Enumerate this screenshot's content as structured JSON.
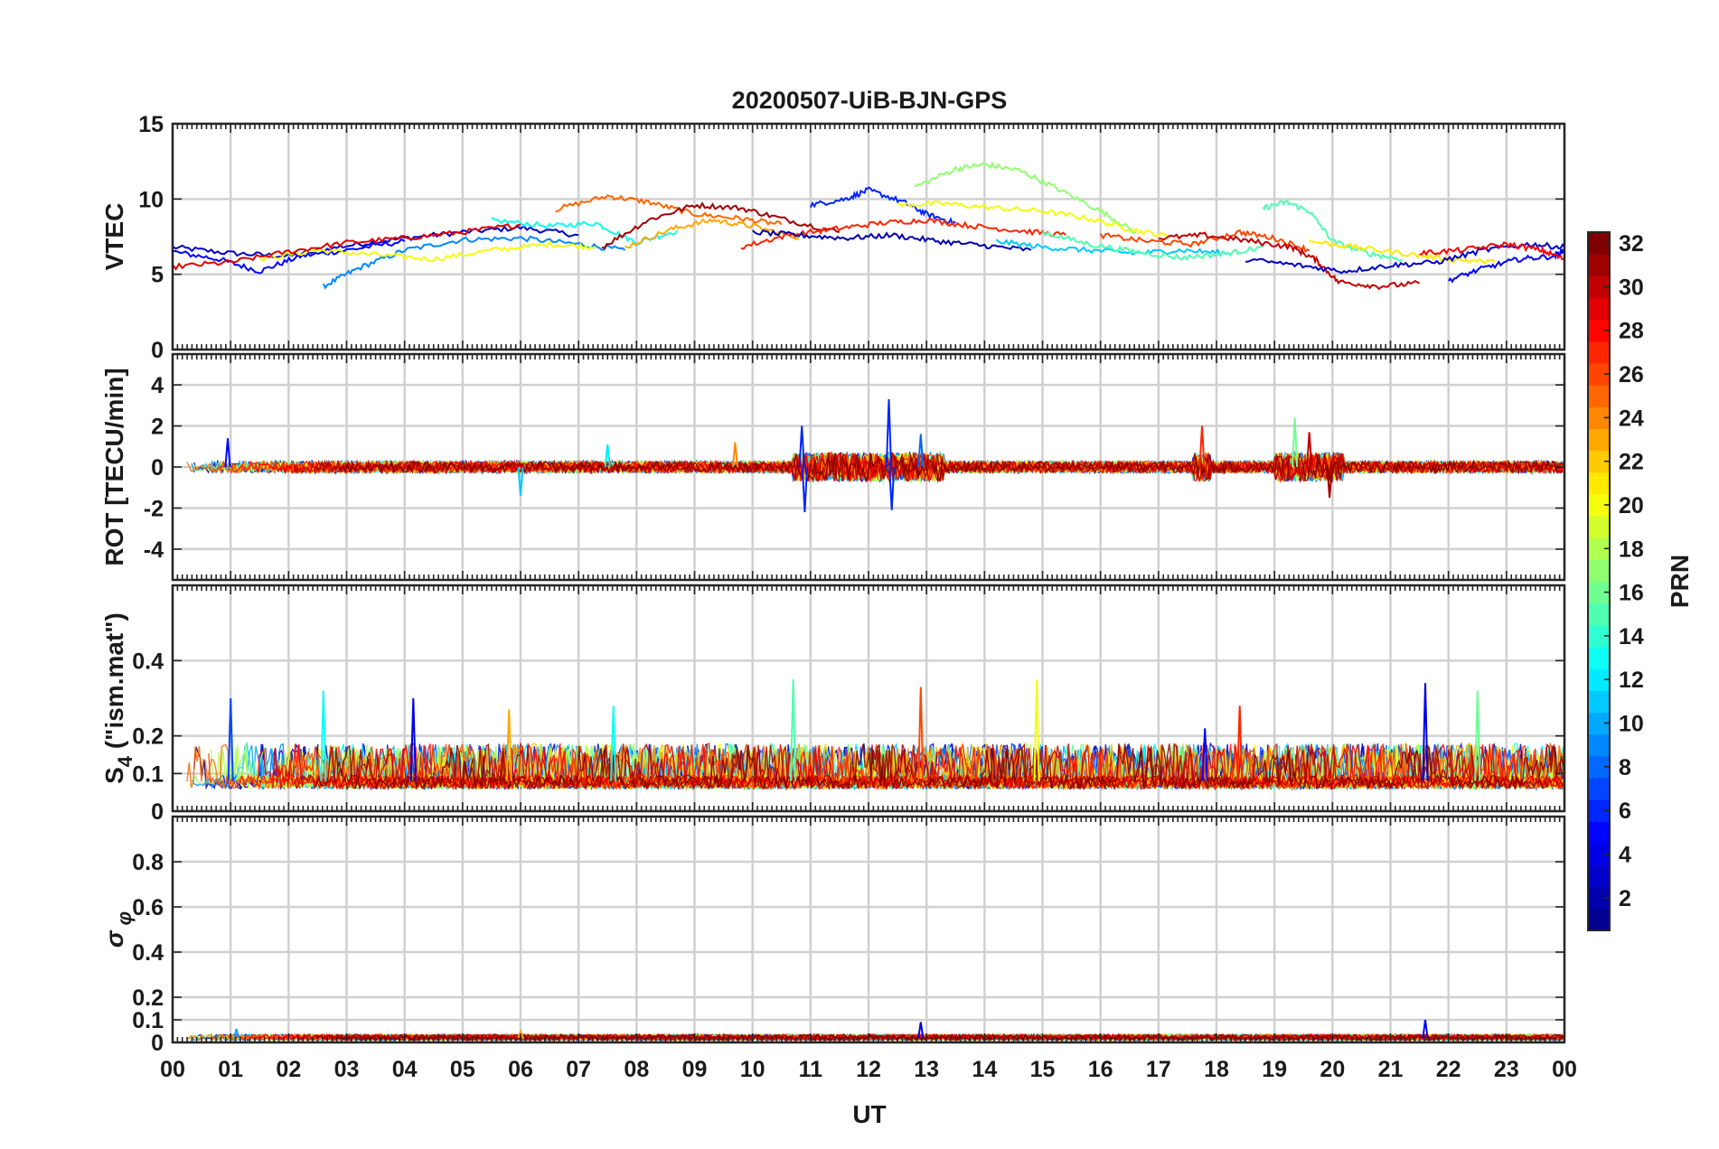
{
  "chart_data": {
    "type": "line",
    "title": "20200507-UiB-BJN-GPS",
    "xlabel": "UT",
    "x_ticks": [
      "00",
      "01",
      "02",
      "03",
      "04",
      "05",
      "06",
      "07",
      "08",
      "09",
      "10",
      "11",
      "12",
      "13",
      "14",
      "15",
      "16",
      "17",
      "18",
      "19",
      "20",
      "21",
      "22",
      "23",
      "00"
    ],
    "xlim": [
      0,
      24
    ],
    "colorbar": {
      "label": "PRN",
      "range": [
        1,
        32
      ],
      "ticks": [
        "2",
        "4",
        "6",
        "8",
        "10",
        "12",
        "14",
        "16",
        "18",
        "20",
        "22",
        "24",
        "26",
        "28",
        "30",
        "32"
      ],
      "colormap": [
        "#00008f",
        "#0000ff",
        "#0080ff",
        "#00ffff",
        "#80ff80",
        "#ffff00",
        "#ff8000",
        "#ff0000",
        "#800000"
      ]
    },
    "panels": [
      {
        "name": "vtec",
        "ylabel": "VTEC",
        "ylim": [
          0,
          15
        ],
        "yticks": [
          "0",
          "5",
          "10",
          "15"
        ],
        "grid_values": [
          0,
          5,
          10,
          15
        ],
        "series": [
          {
            "prn": 3,
            "x": [
              0.0,
              1.0,
              2.0,
              3.0,
              4.0,
              5.0,
              6.0,
              7.0
            ],
            "y": [
              6.8,
              6.4,
              6.2,
              6.9,
              7.4,
              7.8,
              8.1,
              7.6
            ]
          },
          {
            "prn": 5,
            "x": [
              0.0,
              0.8,
              1.5,
              2.2,
              3.0,
              4.0
            ],
            "y": [
              6.5,
              6.0,
              5.2,
              6.2,
              6.6,
              7.2
            ]
          },
          {
            "prn": 9,
            "x": [
              2.6,
              3.2,
              4.0,
              5.0,
              6.0,
              7.0,
              7.8
            ],
            "y": [
              4.2,
              5.4,
              6.6,
              7.3,
              7.4,
              7.0,
              6.6
            ]
          },
          {
            "prn": 13,
            "x": [
              5.5,
              6.5,
              7.3,
              8.0,
              8.7
            ],
            "y": [
              8.6,
              8.2,
              8.4,
              7.1,
              7.9
            ]
          },
          {
            "prn": 20,
            "x": [
              1.5,
              2.5,
              3.5,
              4.5,
              5.5,
              6.5,
              7.3
            ],
            "y": [
              6.0,
              6.6,
              6.3,
              6.0,
              6.6,
              7.0,
              6.8
            ]
          },
          {
            "prn": 25,
            "x": [
              6.6,
              7.5,
              8.2,
              9.0,
              9.8,
              10.5
            ],
            "y": [
              9.3,
              10.2,
              9.8,
              9.0,
              8.7,
              8.3
            ]
          },
          {
            "prn": 29,
            "x": [
              0.0,
              1.0,
              2.0,
              3.0,
              4.0,
              5.0,
              6.0
            ],
            "y": [
              5.5,
              5.8,
              6.5,
              7.1,
              7.4,
              7.8,
              8.3
            ]
          },
          {
            "prn": 31,
            "x": [
              7.4,
              8.2,
              9.0,
              9.8,
              10.6,
              11.5
            ],
            "y": [
              6.8,
              8.6,
              9.6,
              9.4,
              8.6,
              7.8
            ]
          },
          {
            "prn": 23,
            "x": [
              7.8,
              8.6,
              9.3,
              10.0,
              10.8
            ],
            "y": [
              6.8,
              8.0,
              8.6,
              8.2,
              7.4
            ]
          },
          {
            "prn": 6,
            "x": [
              11.0,
              11.6,
              12.0,
              12.6,
              13.0,
              13.5
            ],
            "y": [
              9.6,
              10.0,
              10.6,
              9.8,
              9.0,
              8.4
            ]
          },
          {
            "prn": 17,
            "x": [
              12.8,
              13.5,
              14.0,
              14.6,
              15.2,
              16.0,
              16.6
            ],
            "y": [
              10.8,
              12.0,
              12.3,
              11.9,
              10.8,
              9.2,
              7.8
            ]
          },
          {
            "prn": 20,
            "x": [
              12.5,
              13.3,
              14.2,
              15.0,
              15.8,
              16.5,
              17.2
            ],
            "y": [
              9.6,
              9.7,
              9.4,
              9.2,
              8.7,
              8.0,
              7.5
            ]
          },
          {
            "prn": 27,
            "x": [
              9.8,
              10.6,
              11.4,
              12.2,
              13.0,
              13.8,
              14.6,
              15.4
            ],
            "y": [
              6.8,
              7.6,
              8.0,
              8.4,
              8.6,
              8.2,
              7.9,
              7.6
            ]
          },
          {
            "prn": 2,
            "x": [
              10.0,
              10.8,
              11.6,
              12.4,
              13.2,
              14.0,
              14.8
            ],
            "y": [
              7.8,
              7.6,
              7.4,
              7.6,
              7.2,
              6.9,
              6.6
            ]
          },
          {
            "prn": 11,
            "x": [
              14.2,
              15.0,
              15.8,
              16.6,
              17.4,
              18.2
            ],
            "y": [
              7.2,
              6.8,
              6.6,
              6.4,
              6.6,
              6.4
            ]
          },
          {
            "prn": 15,
            "x": [
              15.0,
              15.8,
              16.6,
              17.4,
              18.2,
              18.8
            ],
            "y": [
              7.8,
              7.0,
              6.5,
              6.1,
              6.4,
              6.8
            ]
          },
          {
            "prn": 26,
            "x": [
              16.0,
              16.8,
              17.6,
              18.4,
              19.0,
              19.6
            ],
            "y": [
              7.6,
              7.2,
              7.0,
              7.8,
              7.4,
              6.6
            ]
          },
          {
            "prn": 30,
            "x": [
              17.0,
              17.8,
              18.6,
              19.3,
              19.7,
              20.1,
              20.8,
              21.5
            ],
            "y": [
              7.4,
              7.6,
              7.2,
              6.8,
              6.0,
              4.5,
              4.2,
              4.4
            ]
          },
          {
            "prn": 15,
            "x": [
              18.8,
              19.2,
              19.6,
              20.0,
              20.6,
              21.2
            ],
            "y": [
              9.4,
              9.8,
              9.2,
              7.2,
              6.4,
              6.0
            ]
          },
          {
            "prn": 21,
            "x": [
              19.6,
              20.4,
              21.2,
              22.0,
              22.8
            ],
            "y": [
              7.2,
              6.8,
              6.4,
              6.0,
              5.8
            ]
          },
          {
            "prn": 3,
            "x": [
              18.5,
              19.4,
              20.2,
              21.0,
              21.8,
              22.6,
              23.4,
              24.0
            ],
            "y": [
              6.0,
              5.6,
              5.2,
              5.6,
              5.8,
              6.6,
              7.0,
              6.8
            ]
          },
          {
            "prn": 5,
            "x": [
              22.0,
              22.6,
              23.2,
              23.8,
              24.0
            ],
            "y": [
              4.6,
              5.4,
              6.0,
              6.2,
              6.6
            ]
          },
          {
            "prn": 28,
            "x": [
              21.5,
              22.2,
              23.0,
              23.6,
              24.0
            ],
            "y": [
              6.4,
              6.6,
              7.0,
              6.6,
              6.0
            ]
          }
        ]
      },
      {
        "name": "rot",
        "ylabel": "ROT [TECU/min]",
        "ylim": [
          -5.5,
          5.5
        ],
        "yticks": [
          "-4",
          "-2",
          "0",
          "2",
          "4"
        ],
        "grid_values": [
          -4,
          -2,
          0,
          2,
          4
        ],
        "spikes": [
          {
            "prn": 5,
            "x": 0.95,
            "y": 1.4
          },
          {
            "prn": 6,
            "x": 10.85,
            "y": 2.0
          },
          {
            "prn": 6,
            "x": 10.9,
            "y": -2.2
          },
          {
            "prn": 6,
            "x": 12.35,
            "y": 3.3
          },
          {
            "prn": 6,
            "x": 12.4,
            "y": -2.1
          },
          {
            "prn": 8,
            "x": 12.9,
            "y": 1.6
          },
          {
            "prn": 27,
            "x": 17.75,
            "y": 2.0
          },
          {
            "prn": 16,
            "x": 19.35,
            "y": 2.4
          },
          {
            "prn": 30,
            "x": 19.6,
            "y": 1.7
          },
          {
            "prn": 31,
            "x": 19.95,
            "y": -1.5
          },
          {
            "prn": 11,
            "x": 6.0,
            "y": -1.4
          },
          {
            "prn": 12,
            "x": 7.5,
            "y": 1.1
          },
          {
            "prn": 24,
            "x": 9.7,
            "y": 1.2
          }
        ]
      },
      {
        "name": "s4",
        "ylabel": "S4 (\"ism.mat\")",
        "ylim": [
          0,
          0.6
        ],
        "yticks": [
          "0",
          "0.1",
          "0.2",
          "0.4"
        ],
        "grid_values": [
          0,
          0.1,
          0.2,
          0.4
        ],
        "spikes": [
          {
            "prn": 7,
            "x": 1.0,
            "y": 0.3
          },
          {
            "prn": 13,
            "x": 2.6,
            "y": 0.32
          },
          {
            "prn": 4,
            "x": 4.15,
            "y": 0.3
          },
          {
            "prn": 23,
            "x": 5.8,
            "y": 0.27
          },
          {
            "prn": 13,
            "x": 7.6,
            "y": 0.28
          },
          {
            "prn": 15,
            "x": 10.7,
            "y": 0.35
          },
          {
            "prn": 26,
            "x": 12.9,
            "y": 0.33
          },
          {
            "prn": 20,
            "x": 14.9,
            "y": 0.35
          },
          {
            "prn": 4,
            "x": 21.6,
            "y": 0.34
          },
          {
            "prn": 16,
            "x": 22.5,
            "y": 0.32
          },
          {
            "prn": 27,
            "x": 18.4,
            "y": 0.28
          },
          {
            "prn": 5,
            "x": 17.8,
            "y": 0.22
          }
        ]
      },
      {
        "name": "sigma_phi",
        "ylabel": "σ φ",
        "ylim": [
          0,
          1
        ],
        "yticks": [
          "0",
          "0.1",
          "0.2",
          "0.4",
          "0.6",
          "0.8"
        ],
        "grid_values": [
          0,
          0.1,
          0.2,
          0.4,
          0.6,
          0.8
        ],
        "spikes": [
          {
            "prn": 4,
            "x": 12.9,
            "y": 0.09
          },
          {
            "prn": 5,
            "x": 21.6,
            "y": 0.1
          },
          {
            "prn": 23,
            "x": 6.0,
            "y": 0.05
          },
          {
            "prn": 10,
            "x": 1.1,
            "y": 0.06
          }
        ]
      }
    ]
  }
}
